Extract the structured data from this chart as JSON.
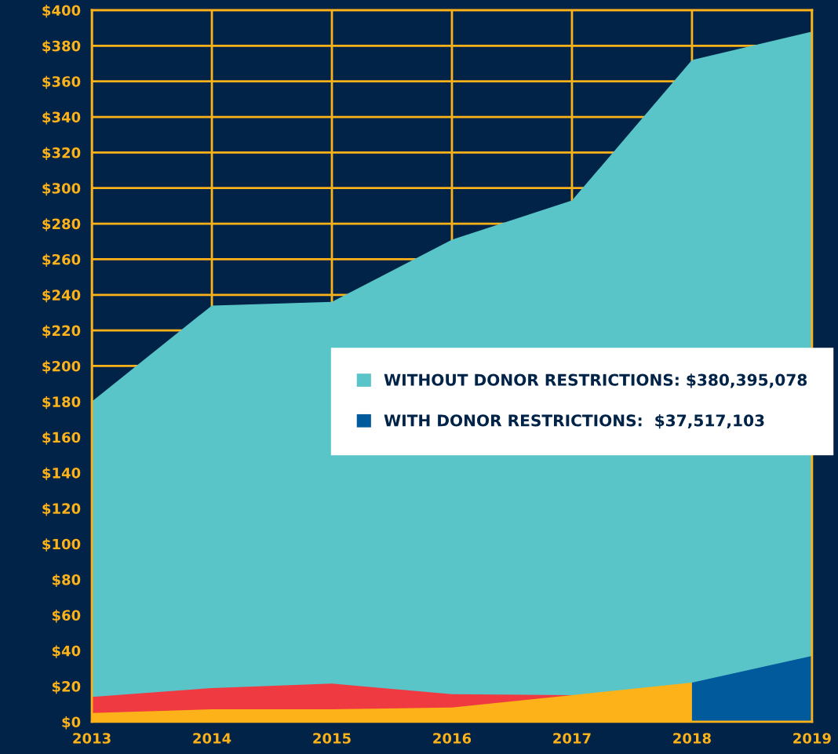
{
  "chart_data": {
    "type": "area",
    "categories": [
      "2013",
      "2014",
      "2015",
      "2016",
      "2017",
      "2018",
      "2019"
    ],
    "series": [
      {
        "name": "WITHOUT DONOR RESTRICTIONS: $380,395,078",
        "color": "#5ac5c8",
        "values": [
          180,
          234,
          236,
          271,
          293,
          372,
          388
        ]
      },
      {
        "color": "#ef3a41",
        "values": [
          14,
          19,
          21.5,
          15.5,
          15,
          null,
          null
        ]
      },
      {
        "color": "#fdb21a",
        "values": [
          5,
          7,
          7,
          8,
          15,
          22,
          null
        ]
      },
      {
        "name": "WITH DONOR RESTRICTIONS:  $37,517,103",
        "color": "#005a9c",
        "values": [
          null,
          null,
          null,
          null,
          null,
          22,
          37
        ]
      }
    ],
    "ylim": [
      0,
      400
    ],
    "yticks": [
      {
        "value": 0,
        "label": "$0"
      },
      {
        "value": 20,
        "label": "$20"
      },
      {
        "value": 40,
        "label": "$40"
      },
      {
        "value": 60,
        "label": "$60"
      },
      {
        "value": 80,
        "label": "$80"
      },
      {
        "value": 100,
        "label": "$100"
      },
      {
        "value": 120,
        "label": "$120"
      },
      {
        "value": 140,
        "label": "$140"
      },
      {
        "value": 160,
        "label": "$160"
      },
      {
        "value": 180,
        "label": "$180"
      },
      {
        "value": 200,
        "label": "$200"
      },
      {
        "value": 220,
        "label": "$220"
      },
      {
        "value": 240,
        "label": "$240"
      },
      {
        "value": 260,
        "label": "$260"
      },
      {
        "value": 280,
        "label": "$280"
      },
      {
        "value": 300,
        "label": "$300"
      },
      {
        "value": 320,
        "label": "$320"
      },
      {
        "value": 340,
        "label": "$340"
      },
      {
        "value": 360,
        "label": "$360"
      },
      {
        "value": 380,
        "label": "$380"
      },
      {
        "value": 400,
        "label": "$400"
      }
    ],
    "grid": true,
    "legend": "right"
  }
}
